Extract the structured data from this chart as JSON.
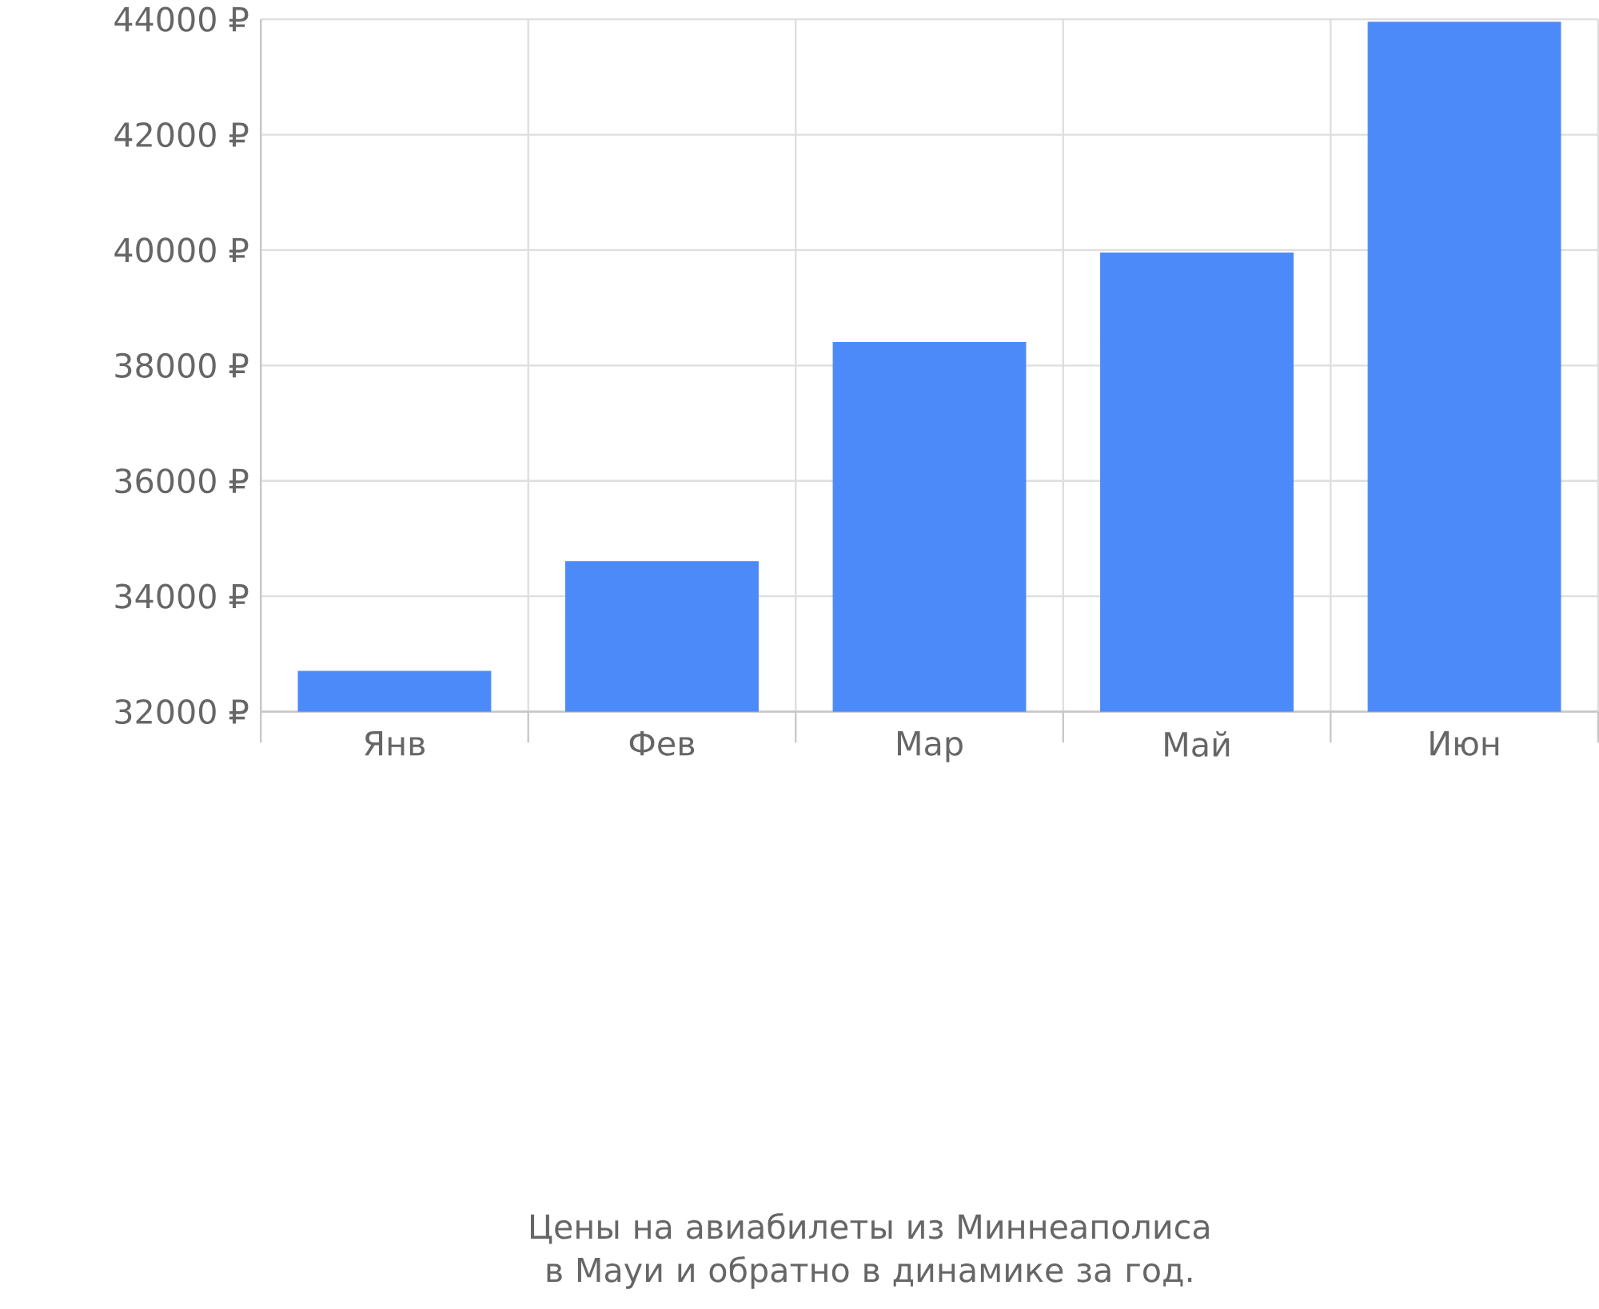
{
  "chart_data": {
    "type": "bar",
    "annotations": [
      "Цены на авиабилеты из Миннеаполиса в Мауи и обратно в динамике за год."
    ],
    "categories": [
      "Янв",
      "Фев",
      "Мар",
      "Май",
      "Июн"
    ],
    "values": [
      32700,
      34600,
      38400,
      39950,
      43950
    ],
    "color": "#4d8af9",
    "ylim": [
      32000,
      44000
    ],
    "yticks": [
      {
        "value": 32000,
        "label": "32000 ₽"
      },
      {
        "value": 34000,
        "label": "34000 ₽"
      },
      {
        "value": 36000,
        "label": "36000 ₽"
      },
      {
        "value": 38000,
        "label": "38000 ₽"
      },
      {
        "value": 40000,
        "label": "40000 ₽"
      },
      {
        "value": 42000,
        "label": "42000 ₽"
      },
      {
        "value": 44000,
        "label": "44000 ₽"
      }
    ],
    "grid": true
  }
}
